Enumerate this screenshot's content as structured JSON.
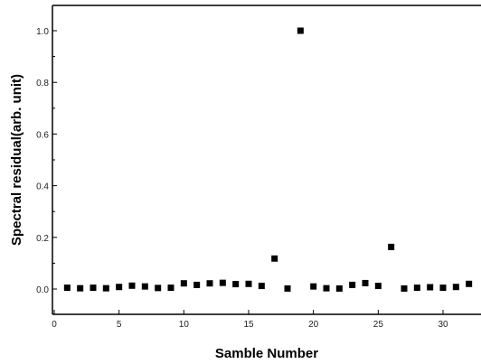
{
  "chart_data": {
    "type": "scatter",
    "title": "",
    "xlabel": "Samble Number",
    "ylabel": "Spectral residual(arb. unit)",
    "xlim": [
      0,
      33
    ],
    "ylim": [
      -0.1,
      1.1
    ],
    "xticks": [
      0,
      5,
      10,
      15,
      20,
      25,
      30
    ],
    "xtick_labels": [
      "0",
      "5",
      "10",
      "15",
      "20",
      "25",
      "30"
    ],
    "yticks": [
      0.0,
      0.2,
      0.4,
      0.6,
      0.8,
      1.0
    ],
    "ytick_labels": [
      "0.0",
      "0.2",
      "0.4",
      "0.6",
      "0.8",
      "1.0"
    ],
    "grid": false,
    "legend": "none",
    "marker": "filled-square",
    "marker_color": "#000000",
    "series": [
      {
        "x": [
          1,
          2,
          3,
          4,
          5,
          6,
          7,
          8,
          9,
          10,
          11,
          12,
          13,
          14,
          15,
          16,
          17,
          18,
          19,
          20,
          21,
          22,
          23,
          24,
          25,
          26,
          27,
          28,
          29,
          30,
          31,
          32
        ],
        "y": [
          0.005,
          0.003,
          0.005,
          0.003,
          0.008,
          0.013,
          0.01,
          0.004,
          0.005,
          0.022,
          0.016,
          0.022,
          0.024,
          0.019,
          0.02,
          0.012,
          0.118,
          0.002,
          1.0,
          0.01,
          0.003,
          0.002,
          0.016,
          0.023,
          0.012,
          0.163,
          0.002,
          0.005,
          0.007,
          0.005,
          0.008,
          0.02
        ]
      }
    ]
  }
}
